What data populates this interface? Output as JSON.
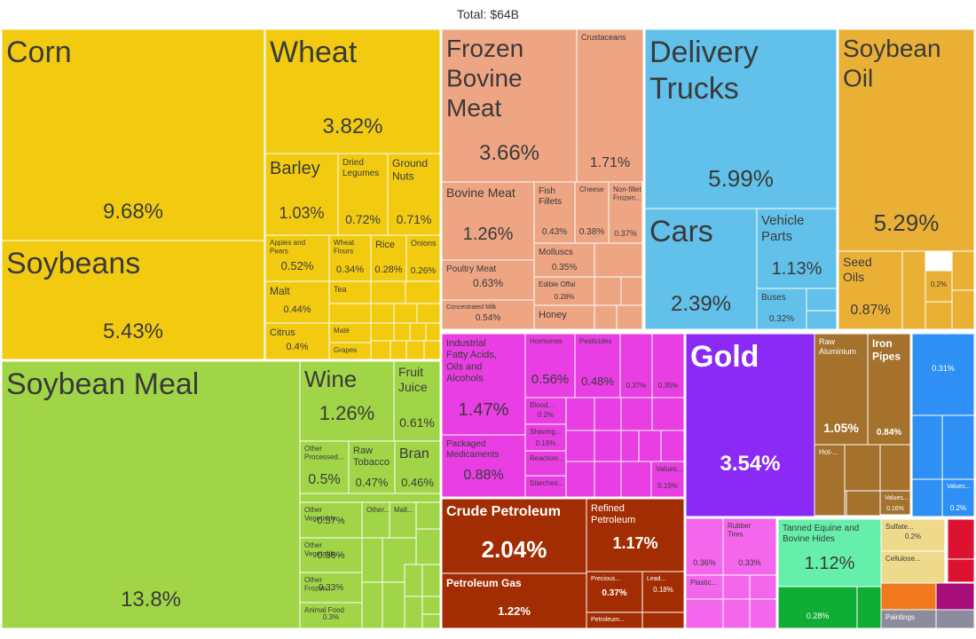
{
  "chart_data": {
    "type": "treemap",
    "title": "Total: $64B",
    "colors": {
      "agri": "#f2cb11",
      "vegprod": "#a0d547",
      "animal": "#eea584",
      "vehicle": "#62c1ea",
      "oil": "#eab036",
      "chemical": "#e83ee3",
      "metal": "#a4722d",
      "mineral": "#a32d03",
      "precious": "#8b29f5",
      "blue": "#2e90f5",
      "plastic": "#f466ec",
      "hides": "#66efaa",
      "paper": "#efda8b",
      "textile": "#f0791e",
      "red": "#dc1230",
      "purple": "#a60d78",
      "green": "#0fad35",
      "grey": "#8c8c9c"
    },
    "items": [
      {
        "label": "Corn",
        "value": "9.68%",
        "group": "agri"
      },
      {
        "label": "Soybeans",
        "value": "5.43%",
        "group": "agri"
      },
      {
        "label": "Wheat",
        "value": "3.82%",
        "group": "agri"
      },
      {
        "label": "Barley",
        "value": "1.03%",
        "group": "agri"
      },
      {
        "label": "Dried Legumes",
        "value": "0.72%",
        "group": "agri"
      },
      {
        "label": "Ground Nuts",
        "value": "0.71%",
        "group": "agri"
      },
      {
        "label": "Apples and Pears",
        "value": "0.52%",
        "group": "agri"
      },
      {
        "label": "Wheat Flours",
        "value": "0.34%",
        "group": "agri"
      },
      {
        "label": "Rice",
        "value": "0.28%",
        "group": "agri"
      },
      {
        "label": "Onions",
        "value": "0.26%",
        "group": "agri"
      },
      {
        "label": "Malt",
        "value": "0.44%",
        "group": "agri"
      },
      {
        "label": "Citrus",
        "value": "0.4%",
        "group": "agri"
      },
      {
        "label": "Tea",
        "value": "",
        "group": "agri"
      },
      {
        "label": "Maté",
        "value": "",
        "group": "agri"
      },
      {
        "label": "Grapes",
        "value": "",
        "group": "agri"
      },
      {
        "label": "Soybean Meal",
        "value": "13.8%",
        "group": "vegprod"
      },
      {
        "label": "Wine",
        "value": "1.26%",
        "group": "vegprod"
      },
      {
        "label": "Fruit Juice",
        "value": "0.61%",
        "group": "vegprod"
      },
      {
        "label": "Other Processed...",
        "value": "0.5%",
        "group": "vegprod"
      },
      {
        "label": "Raw Tobacco",
        "value": "0.47%",
        "group": "vegprod"
      },
      {
        "label": "Bran",
        "value": "0.46%",
        "group": "vegprod"
      },
      {
        "label": "Other Vegetable...",
        "value": "0.37%",
        "group": "vegprod"
      },
      {
        "label": "Other...",
        "value": "",
        "group": "vegprod"
      },
      {
        "label": "Malt...",
        "value": "",
        "group": "vegprod"
      },
      {
        "label": "Other Vegetable...",
        "value": "0.36%",
        "group": "vegprod"
      },
      {
        "label": "Other Frozen...",
        "value": "0.33%",
        "group": "vegprod"
      },
      {
        "label": "Animal Food",
        "value": "0.3%",
        "group": "vegprod"
      },
      {
        "label": "Frozen Bovine Meat",
        "value": "3.66%",
        "group": "animal"
      },
      {
        "label": "Crustaceans",
        "value": "1.71%",
        "group": "animal"
      },
      {
        "label": "Bovine Meat",
        "value": "1.26%",
        "group": "animal"
      },
      {
        "label": "Fish Fillets",
        "value": "0.43%",
        "group": "animal"
      },
      {
        "label": "Cheese",
        "value": "0.38%",
        "group": "animal"
      },
      {
        "label": "Non-fillet Frozen...",
        "value": "0.37%",
        "group": "animal"
      },
      {
        "label": "Molluscs",
        "value": "0.35%",
        "group": "animal"
      },
      {
        "label": "Poultry Meat",
        "value": "0.63%",
        "group": "animal"
      },
      {
        "label": "Edible Offal",
        "value": "0.28%",
        "group": "animal"
      },
      {
        "label": "Concentrated Milk",
        "value": "0.54%",
        "group": "animal"
      },
      {
        "label": "Honey",
        "value": "",
        "group": "animal"
      },
      {
        "label": "Delivery Trucks",
        "value": "5.99%",
        "group": "vehicle"
      },
      {
        "label": "Cars",
        "value": "2.39%",
        "group": "vehicle"
      },
      {
        "label": "Vehicle Parts",
        "value": "1.13%",
        "group": "vehicle"
      },
      {
        "label": "Buses",
        "value": "0.32%",
        "group": "vehicle"
      },
      {
        "label": "Soybean Oil",
        "value": "5.29%",
        "group": "oil"
      },
      {
        "label": "Seed Oils",
        "value": "0.87%",
        "group": "oil"
      },
      {
        "label": "",
        "value": "0.2%",
        "group": "oil"
      },
      {
        "label": "Industrial Fatty Acids, Oils and Alcohols",
        "value": "1.47%",
        "group": "chemical"
      },
      {
        "label": "Hormones",
        "value": "0.56%",
        "group": "chemical"
      },
      {
        "label": "Pesticides",
        "value": "0.48%",
        "group": "chemical"
      },
      {
        "label": "",
        "value": "0.37%",
        "group": "chemical"
      },
      {
        "label": "",
        "value": "0.35%",
        "group": "chemical"
      },
      {
        "label": "Packaged Medicaments",
        "value": "0.88%",
        "group": "chemical"
      },
      {
        "label": "Blood...",
        "value": "0.2%",
        "group": "chemical"
      },
      {
        "label": "Shaving...",
        "value": "0.19%",
        "group": "chemical"
      },
      {
        "label": "Reaction...",
        "value": "",
        "group": "chemical"
      },
      {
        "label": "Starches...",
        "value": "",
        "group": "chemical"
      },
      {
        "label": "Values...",
        "value": "0.19%",
        "group": "chemical"
      },
      {
        "label": "Gold",
        "value": "3.54%",
        "group": "precious"
      },
      {
        "label": "Raw Aluminium",
        "value": "1.05%",
        "group": "metal"
      },
      {
        "label": "Iron Pipes",
        "value": "0.84%",
        "group": "metal"
      },
      {
        "label": "Hot-...",
        "value": "",
        "group": "metal"
      },
      {
        "label": "Values...",
        "value": "0.16%",
        "group": "metal"
      },
      {
        "label": "",
        "value": "0.31%",
        "group": "blue"
      },
      {
        "label": "Values...",
        "value": "0.2%",
        "group": "blue"
      },
      {
        "label": "Crude Petroleum",
        "value": "2.04%",
        "group": "mineral"
      },
      {
        "label": "Refined Petroleum",
        "value": "1.17%",
        "group": "mineral"
      },
      {
        "label": "Petroleum Gas",
        "value": "1.22%",
        "group": "mineral"
      },
      {
        "label": "Precious...",
        "value": "0.37%",
        "group": "mineral"
      },
      {
        "label": "Lead...",
        "value": "0.18%",
        "group": "mineral"
      },
      {
        "label": "Petroleum...",
        "value": "",
        "group": "mineral"
      },
      {
        "label": "",
        "value": "0.36%",
        "group": "plastic"
      },
      {
        "label": "Rubber Tires",
        "value": "0.33%",
        "group": "plastic"
      },
      {
        "label": "Plastic...",
        "value": "",
        "group": "plastic"
      },
      {
        "label": "Tanned Equine and Bovine Hides",
        "value": "1.12%",
        "group": "hides"
      },
      {
        "label": "",
        "value": "0.28%",
        "group": "green"
      },
      {
        "label": "Sulfate...",
        "value": "0.2%",
        "group": "paper"
      },
      {
        "label": "Cellulose...",
        "value": "",
        "group": "paper"
      },
      {
        "label": "Paintings",
        "value": "",
        "group": "grey"
      }
    ]
  }
}
